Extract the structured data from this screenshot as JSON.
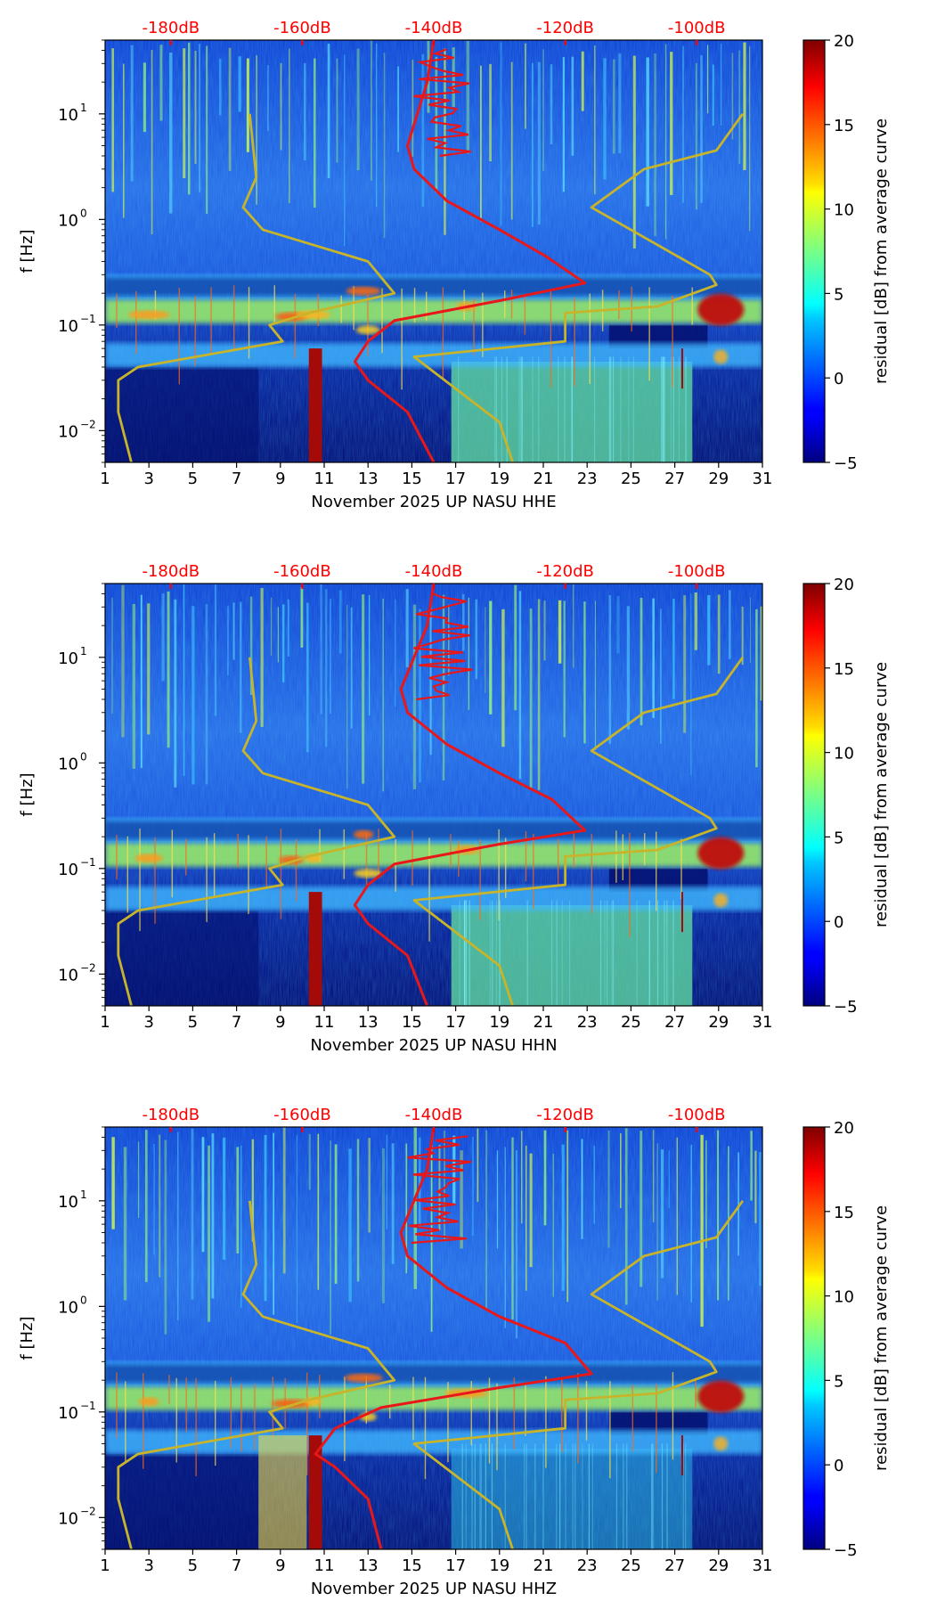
{
  "figure": {
    "colorbar_label": "residual [dB] from average curve",
    "colorbar_ticks": [
      "20",
      "15",
      "10",
      "5",
      "0",
      "−5"
    ],
    "colormap": "jet",
    "top_axis_ticks": [
      "-180dB",
      "-160dB",
      "-140dB",
      "-120dB",
      "-100dB"
    ],
    "top_axis_color": "#ff0000",
    "x_ticks": [
      "1",
      "3",
      "5",
      "7",
      "9",
      "11",
      "13",
      "15",
      "17",
      "19",
      "21",
      "23",
      "25",
      "27",
      "29",
      "31"
    ],
    "y_ticks": [
      "10",
      "10",
      "10",
      "10"
    ],
    "y_tick_exponents": [
      "1",
      "0",
      "−1",
      "−2"
    ],
    "ylabel": "f [Hz]"
  },
  "chart_data": [
    {
      "type": "heatmap",
      "title": "",
      "xlabel": "November 2025 UP NASU  HHE",
      "ylabel": "f [Hz]",
      "x_range_day": [
        1,
        31
      ],
      "y_range_hz": [
        0.005,
        50
      ],
      "y_scale": "log",
      "color_range_db": [
        -5,
        20
      ],
      "top_axis_db_range": [
        -190,
        -90
      ],
      "series": [
        {
          "name": "",
          "color": "#e8171a",
          "points": [
            [
              -140,
              50
            ],
            [
              -141,
              20
            ],
            [
              -144,
              5
            ],
            [
              -143,
              3
            ],
            [
              -138,
              1.5
            ],
            [
              -130,
              0.8
            ],
            [
              -123,
              0.45
            ],
            [
              -117,
              0.25
            ],
            [
              -130,
              0.17
            ],
            [
              -146,
              0.11
            ],
            [
              -150,
              0.07
            ],
            [
              -152,
              0.045
            ],
            [
              -150,
              0.03
            ],
            [
              -144,
              0.015
            ],
            [
              -140,
              0.005
            ]
          ]
        },
        {
          "name": "",
          "color": "#c8b42a",
          "points": [
            [
              -168,
              10
            ],
            [
              -167,
              2.5
            ],
            [
              -169,
              1.3
            ],
            [
              -166,
              0.8
            ],
            [
              -150,
              0.4
            ],
            [
              -146,
              0.2
            ],
            [
              -159,
              0.13
            ],
            [
              -165,
              0.1
            ],
            [
              -163,
              0.07
            ],
            [
              -185,
              0.04
            ],
            [
              -188,
              0.03
            ],
            [
              -188,
              0.015
            ],
            [
              -186,
              0.005
            ]
          ]
        },
        {
          "name": "",
          "color": "#c8b42a",
          "points": [
            [
              -93,
              10
            ],
            [
              -97,
              4.5
            ],
            [
              -108,
              3
            ],
            [
              -116,
              1.3
            ],
            [
              -98,
              0.3
            ],
            [
              -97,
              0.24
            ],
            [
              -106,
              0.15
            ],
            [
              -120,
              0.13
            ],
            [
              -120,
              0.07
            ],
            [
              -143,
              0.05
            ],
            [
              -130,
              0.012
            ],
            [
              -128,
              0.005
            ]
          ]
        }
      ]
    },
    {
      "type": "heatmap",
      "title": "",
      "xlabel": "November 2025 UP NASU  HHN",
      "ylabel": "f [Hz]",
      "x_range_day": [
        1,
        31
      ],
      "y_range_hz": [
        0.005,
        50
      ],
      "y_scale": "log",
      "color_range_db": [
        -5,
        20
      ],
      "top_axis_db_range": [
        -190,
        -90
      ],
      "series": [
        {
          "name": "",
          "color": "#e8171a",
          "points": [
            [
              -140,
              50
            ],
            [
              -141,
              20
            ],
            [
              -145,
              5
            ],
            [
              -144,
              3
            ],
            [
              -138,
              1.5
            ],
            [
              -130,
              0.8
            ],
            [
              -122,
              0.45
            ],
            [
              -117,
              0.23
            ],
            [
              -130,
              0.17
            ],
            [
              -146,
              0.11
            ],
            [
              -150,
              0.07
            ],
            [
              -152,
              0.045
            ],
            [
              -150,
              0.03
            ],
            [
              -144,
              0.015
            ],
            [
              -141,
              0.005
            ]
          ]
        },
        {
          "name": "",
          "color": "#c8b42a",
          "points": [
            [
              -168,
              10
            ],
            [
              -167,
              2.5
            ],
            [
              -169,
              1.3
            ],
            [
              -166,
              0.8
            ],
            [
              -150,
              0.4
            ],
            [
              -146,
              0.2
            ],
            [
              -159,
              0.13
            ],
            [
              -165,
              0.1
            ],
            [
              -163,
              0.07
            ],
            [
              -185,
              0.04
            ],
            [
              -188,
              0.03
            ],
            [
              -188,
              0.015
            ],
            [
              -186,
              0.005
            ]
          ]
        },
        {
          "name": "",
          "color": "#c8b42a",
          "points": [
            [
              -93,
              10
            ],
            [
              -97,
              4.5
            ],
            [
              -108,
              3
            ],
            [
              -116,
              1.3
            ],
            [
              -98,
              0.3
            ],
            [
              -97,
              0.24
            ],
            [
              -106,
              0.15
            ],
            [
              -120,
              0.13
            ],
            [
              -120,
              0.07
            ],
            [
              -143,
              0.05
            ],
            [
              -130,
              0.012
            ],
            [
              -128,
              0.005
            ]
          ]
        }
      ]
    },
    {
      "type": "heatmap",
      "title": "",
      "xlabel": "November 2025 UP NASU  HHZ",
      "ylabel": "f [Hz]",
      "x_range_day": [
        1,
        31
      ],
      "y_range_hz": [
        0.005,
        50
      ],
      "y_scale": "log",
      "color_range_db": [
        -5,
        20
      ],
      "top_axis_db_range": [
        -190,
        -90
      ],
      "series": [
        {
          "name": "",
          "color": "#e8171a",
          "points": [
            [
              -140,
              50
            ],
            [
              -141,
              20
            ],
            [
              -145,
              5
            ],
            [
              -144,
              3
            ],
            [
              -138,
              1.5
            ],
            [
              -130,
              0.8
            ],
            [
              -120,
              0.45
            ],
            [
              -116,
              0.23
            ],
            [
              -130,
              0.17
            ],
            [
              -148,
              0.11
            ],
            [
              -155,
              0.07
            ],
            [
              -158,
              0.04
            ],
            [
              -155,
              0.03
            ],
            [
              -150,
              0.015
            ],
            [
              -148,
              0.005
            ]
          ]
        },
        {
          "name": "",
          "color": "#c8b42a",
          "points": [
            [
              -168,
              10
            ],
            [
              -167,
              2.5
            ],
            [
              -169,
              1.3
            ],
            [
              -166,
              0.8
            ],
            [
              -150,
              0.4
            ],
            [
              -146,
              0.2
            ],
            [
              -159,
              0.13
            ],
            [
              -165,
              0.1
            ],
            [
              -163,
              0.07
            ],
            [
              -185,
              0.04
            ],
            [
              -188,
              0.03
            ],
            [
              -188,
              0.015
            ],
            [
              -186,
              0.005
            ]
          ]
        },
        {
          "name": "",
          "color": "#c8b42a",
          "points": [
            [
              -93,
              10
            ],
            [
              -97,
              4.5
            ],
            [
              -108,
              3
            ],
            [
              -116,
              1.3
            ],
            [
              -98,
              0.3
            ],
            [
              -97,
              0.24
            ],
            [
              -106,
              0.15
            ],
            [
              -120,
              0.13
            ],
            [
              -120,
              0.07
            ],
            [
              -143,
              0.05
            ],
            [
              -130,
              0.012
            ],
            [
              -128,
              0.005
            ]
          ]
        }
      ]
    }
  ]
}
